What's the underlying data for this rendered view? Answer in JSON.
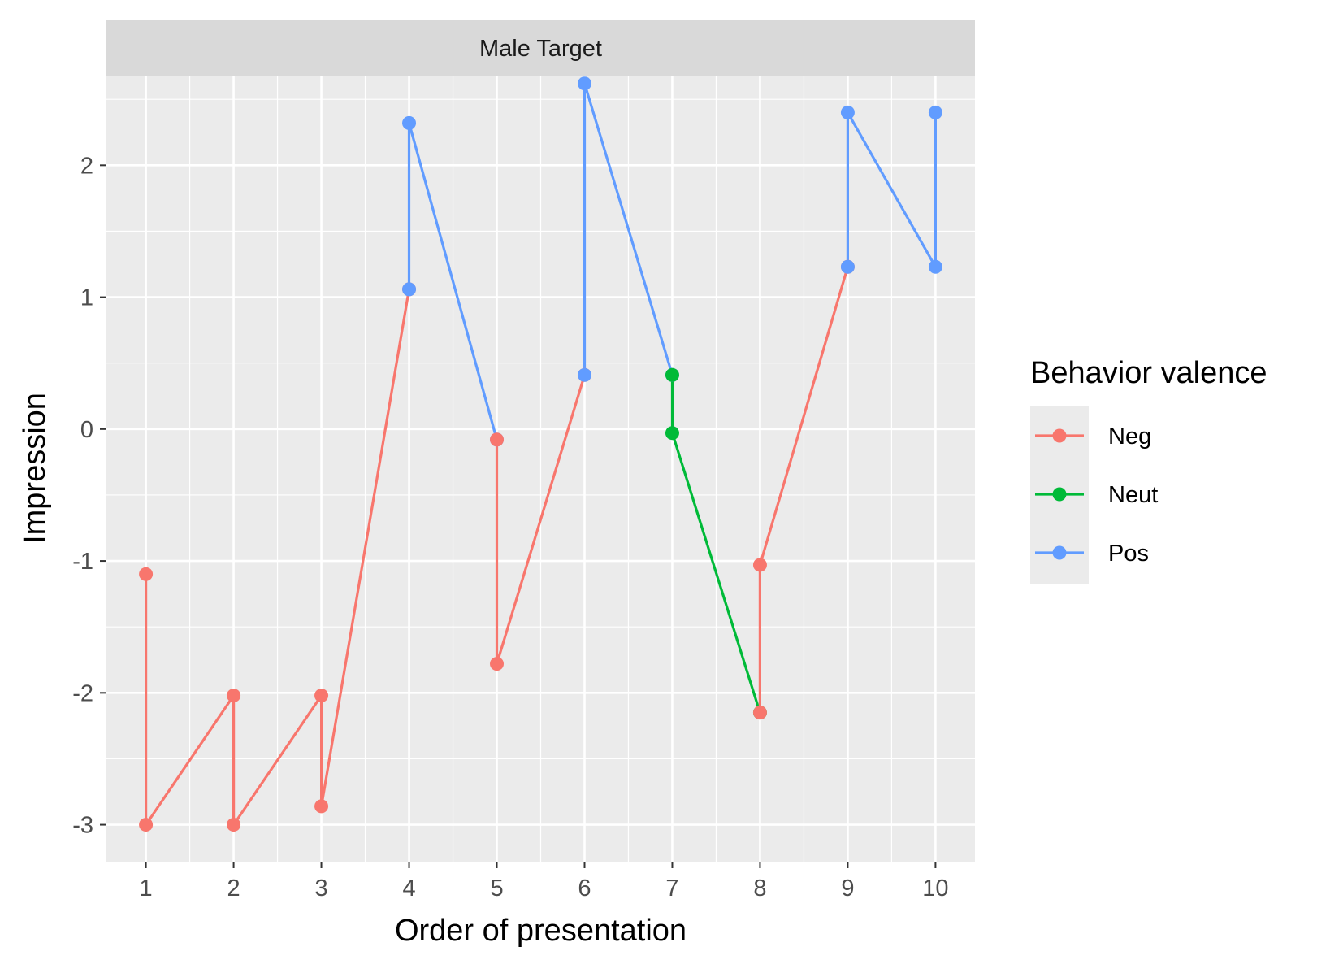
{
  "chart_data": {
    "type": "line",
    "facet_label": "Male Target",
    "xlabel": "Order of presentation",
    "ylabel": "Impression",
    "x_ticks": [
      1,
      2,
      3,
      4,
      5,
      6,
      7,
      8,
      9,
      10
    ],
    "y_ticks": [
      -3,
      -2,
      -1,
      0,
      1,
      2
    ],
    "xlim": [
      0.55,
      10.45
    ],
    "ylim": [
      -3.28,
      2.68
    ],
    "grid": true,
    "legend_title": "Behavior valence",
    "legend_position": "right",
    "series": [
      {
        "name": "Neg",
        "color": "#F8766D",
        "points": [
          [
            1,
            -1.1
          ],
          [
            1,
            -3.0
          ],
          [
            2,
            -2.02
          ],
          [
            2,
            -3.0
          ],
          [
            3,
            -2.02
          ],
          [
            3,
            -2.86
          ],
          [
            4,
            1.06
          ]
        ]
      },
      {
        "name": "Pos",
        "color": "#619CFF",
        "points": [
          [
            4,
            1.06
          ],
          [
            4,
            2.32
          ],
          [
            5,
            -0.08
          ]
        ]
      },
      {
        "name": "Neg",
        "color": "#F8766D",
        "points": [
          [
            5,
            -0.08
          ],
          [
            5,
            -1.78
          ],
          [
            6,
            0.41
          ]
        ]
      },
      {
        "name": "Pos",
        "color": "#619CFF",
        "points": [
          [
            6,
            0.41
          ],
          [
            6,
            2.62
          ],
          [
            7,
            0.41
          ]
        ]
      },
      {
        "name": "Neut",
        "color": "#00BA38",
        "points": [
          [
            7,
            0.41
          ],
          [
            7,
            -0.03
          ],
          [
            8,
            -2.15
          ]
        ]
      },
      {
        "name": "Neg",
        "color": "#F8766D",
        "points": [
          [
            8,
            -2.15
          ],
          [
            8,
            -1.03
          ],
          [
            9,
            1.23
          ]
        ]
      },
      {
        "name": "Pos",
        "color": "#619CFF",
        "points": [
          [
            9,
            1.23
          ],
          [
            9,
            2.4
          ],
          [
            10,
            1.23
          ],
          [
            10,
            2.4
          ]
        ]
      }
    ],
    "legend": [
      {
        "label": "Neg",
        "color": "#F8766D"
      },
      {
        "label": "Neut",
        "color": "#00BA38"
      },
      {
        "label": "Pos",
        "color": "#619CFF"
      }
    ]
  }
}
